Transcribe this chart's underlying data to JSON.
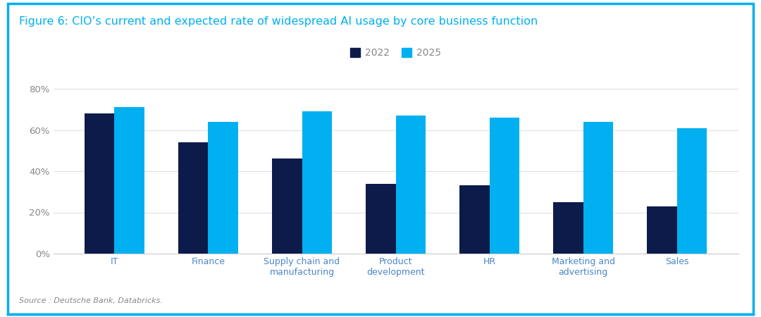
{
  "title": "Figure 6: CIO’s current and expected rate of widespread AI usage by core business function",
  "categories": [
    "IT",
    "Finance",
    "Supply chain and\nmanufacturing",
    "Product\ndevelopment",
    "HR",
    "Marketing and\nadvertising",
    "Sales"
  ],
  "values_2022": [
    0.68,
    0.54,
    0.46,
    0.34,
    0.33,
    0.25,
    0.23
  ],
  "values_2025": [
    0.71,
    0.64,
    0.69,
    0.67,
    0.66,
    0.64,
    0.61
  ],
  "color_2022": "#0d1b4b",
  "color_2025": "#00b0f0",
  "ylim": [
    0,
    0.8
  ],
  "yticks": [
    0,
    0.2,
    0.4,
    0.6,
    0.8
  ],
  "ytick_labels": [
    "0%",
    "20%",
    "40%",
    "60%",
    "80%"
  ],
  "legend_labels": [
    "2022",
    "2025"
  ],
  "source_text": "Source : Deutsche Bank, Databricks.",
  "background_color": "#ffffff",
  "border_color": "#00b0f0",
  "title_color": "#00b0f0",
  "tick_label_color": "#888888",
  "axis_label_color": "#4a86c8",
  "bar_width": 0.32,
  "title_fontsize": 11.5,
  "legend_fontsize": 10,
  "ytick_fontsize": 9.5,
  "xtick_fontsize": 9
}
